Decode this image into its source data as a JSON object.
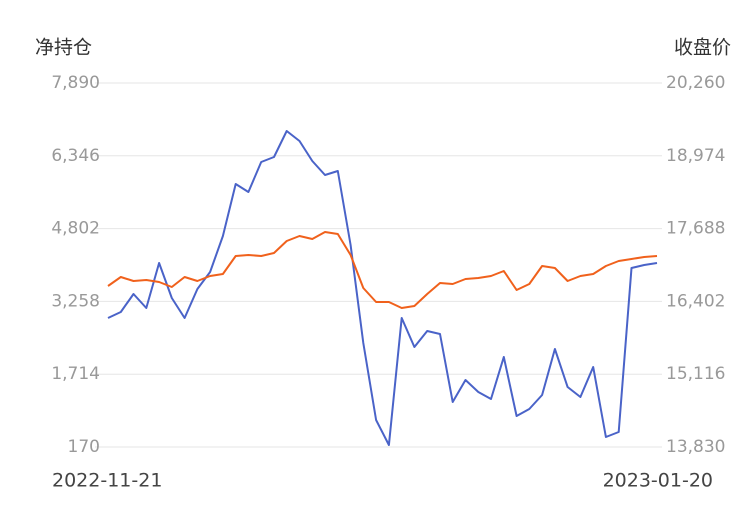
{
  "chart_data": {
    "type": "line",
    "y_label": "净持仓",
    "y2_label": "收盘价",
    "categories": [
      "2022-11-21",
      null,
      null,
      null,
      null,
      null,
      null,
      null,
      null,
      null,
      null,
      null,
      null,
      null,
      null,
      null,
      null,
      null,
      null,
      null,
      null,
      null,
      null,
      null,
      null,
      null,
      null,
      null,
      null,
      null,
      null,
      null,
      null,
      null,
      null,
      null,
      null,
      null,
      null,
      null,
      null,
      null,
      null,
      "2023-01-20"
    ],
    "series": [
      {
        "color": "#4a63c8",
        "values": [
          2906,
          3033,
          3415,
          3118,
          4072,
          3330,
          2906,
          3521,
          3882,
          4645,
          5748,
          5578,
          6215,
          6321,
          6872,
          6660,
          6236,
          5939,
          6024,
          4454,
          2376,
          743,
          212,
          2906,
          2291,
          2630,
          2567,
          1124,
          1591,
          1336,
          1188,
          2079,
          827,
          976,
          1273,
          2248,
          1443,
          1230,
          1867,
          382,
          488,
          3966,
          4030,
          4072
        ]
      },
      {
        "color": "#f0611c",
        "axis": "y2",
        "values": [
          16674,
          16833,
          16762,
          16780,
          16745,
          16656,
          16833,
          16762,
          16851,
          16886,
          17204,
          17222,
          17204,
          17257,
          17469,
          17557,
          17504,
          17628,
          17593,
          17222,
          16639,
          16391,
          16391,
          16285,
          16321,
          16533,
          16727,
          16709,
          16798,
          16815,
          16851,
          16939,
          16603,
          16709,
          17027,
          16992,
          16762,
          16851,
          16886,
          17027,
          17116,
          17151,
          17186,
          17204
        ]
      }
    ],
    "ylim": [
      170,
      7890
    ],
    "yticks": [
      170,
      {
        "value": 1714,
        "label": "1,714"
      },
      {
        "value": 3258,
        "label": "3,258"
      },
      {
        "value": 4802,
        "label": "4,802"
      },
      {
        "value": 6346,
        "label": "6,346"
      },
      {
        "value": 7890,
        "label": "7,890"
      }
    ],
    "y2lim": [
      13830,
      20260
    ],
    "y2ticks": [
      {
        "value": 13830,
        "label": "13,830"
      },
      {
        "value": 15116,
        "label": "15,116"
      },
      {
        "value": 16402,
        "label": "16,402"
      },
      {
        "value": 17688,
        "label": "17,688"
      },
      {
        "value": 18974,
        "label": "18,974"
      },
      {
        "value": 20260,
        "label": "20,260"
      }
    ],
    "grid": true
  }
}
